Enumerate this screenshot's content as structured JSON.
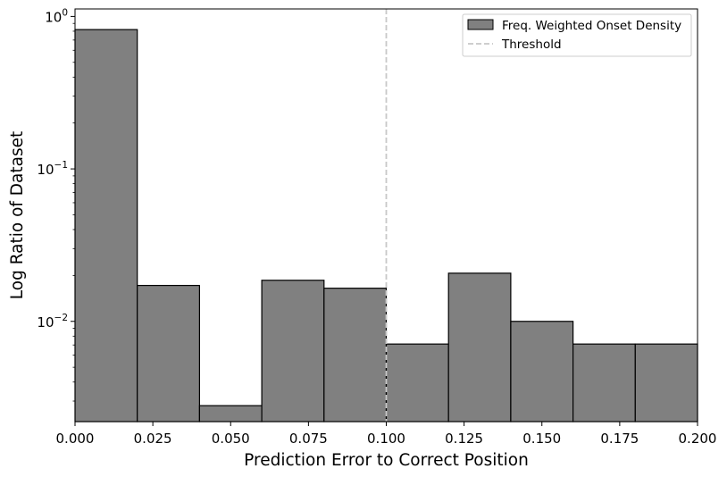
{
  "chart_data": {
    "type": "bar",
    "subtype": "histogram",
    "xlabel": "Prediction Error to Correct Position",
    "ylabel": "Log Ratio of Dataset",
    "xlim": [
      0.0,
      0.2
    ],
    "ylim": [
      0.0022,
      1.12
    ],
    "yscale": "log",
    "grid": false,
    "legend_position": "top-right",
    "bin_edges": [
      0.0,
      0.02,
      0.04,
      0.06,
      0.08,
      0.1,
      0.12,
      0.14,
      0.16,
      0.18,
      0.2
    ],
    "x_ticks": [
      {
        "value": 0.0,
        "label": "0.000"
      },
      {
        "value": 0.025,
        "label": "0.025"
      },
      {
        "value": 0.05,
        "label": "0.050"
      },
      {
        "value": 0.075,
        "label": "0.075"
      },
      {
        "value": 0.1,
        "label": "0.100"
      },
      {
        "value": 0.125,
        "label": "0.125"
      },
      {
        "value": 0.15,
        "label": "0.150"
      },
      {
        "value": 0.175,
        "label": "0.175"
      },
      {
        "value": 0.2,
        "label": "0.200"
      }
    ],
    "y_ticks": [
      {
        "value": 1,
        "base": "10",
        "exp": "0"
      },
      {
        "value": 0.1,
        "base": "10",
        "exp": "−1"
      },
      {
        "value": 0.01,
        "base": "10",
        "exp": "−2"
      }
    ],
    "series": [
      {
        "name": "Freq. Weighted Onset Density",
        "color": "#808080",
        "edge_color": "#000000",
        "values": [
          0.82,
          0.0172,
          0.0028,
          0.0186,
          0.0165,
          0.0071,
          0.0207,
          0.01,
          0.0071,
          0.0071
        ]
      }
    ],
    "threshold": {
      "name": "Threshold",
      "x": 0.1,
      "color": "#c8c8c8",
      "style": "dashed"
    }
  }
}
